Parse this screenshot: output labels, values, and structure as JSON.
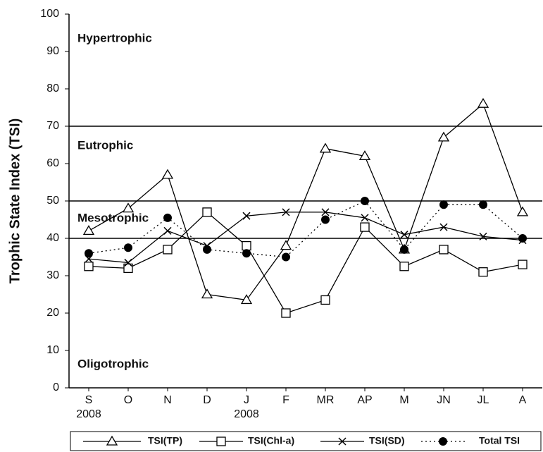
{
  "chart_data": {
    "type": "line",
    "y_label": "Trophic State Index (TSI)",
    "categories": [
      "S",
      "O",
      "N",
      "D",
      "J",
      "F",
      "MR",
      "AP",
      "M",
      "JN",
      "JL",
      "A"
    ],
    "category_sublabels": [
      "2008",
      null,
      null,
      null,
      "2008",
      null,
      null,
      null,
      null,
      null,
      null,
      null
    ],
    "ylim": [
      0,
      100
    ],
    "yticks": [
      0,
      10,
      20,
      30,
      40,
      50,
      60,
      70,
      80,
      90,
      100
    ],
    "reference_lines": [
      40,
      50,
      70
    ],
    "annotations": [
      "Hypertrophic",
      "Eutrophic",
      "Mesotrophic",
      "Oligotrophic"
    ],
    "series": [
      {
        "name": "TSI(TP)",
        "color": "#000000",
        "marker": "triangle",
        "dash": "solid",
        "values": [
          42,
          48,
          57,
          25,
          23.5,
          38,
          64,
          62,
          37,
          67,
          76,
          47
        ]
      },
      {
        "name": "TSI(Chl-a)",
        "color": "#000000",
        "marker": "square",
        "dash": "solid",
        "values": [
          32.5,
          32,
          37,
          47,
          38,
          20,
          23.5,
          43,
          32.5,
          37,
          31,
          33
        ]
      },
      {
        "name": "TSI(SD)",
        "color": "#000000",
        "marker": "cross",
        "dash": "solid",
        "values": [
          34.5,
          33.5,
          42,
          38,
          46,
          47,
          47,
          45.5,
          41,
          43,
          40.5,
          39.5
        ]
      },
      {
        "name": "Total TSI",
        "color": "#000000",
        "marker": "dot",
        "dash": "dotted",
        "values": [
          36,
          37.5,
          45.5,
          37,
          36,
          35,
          45,
          50,
          37,
          49,
          49,
          40
        ]
      }
    ]
  }
}
